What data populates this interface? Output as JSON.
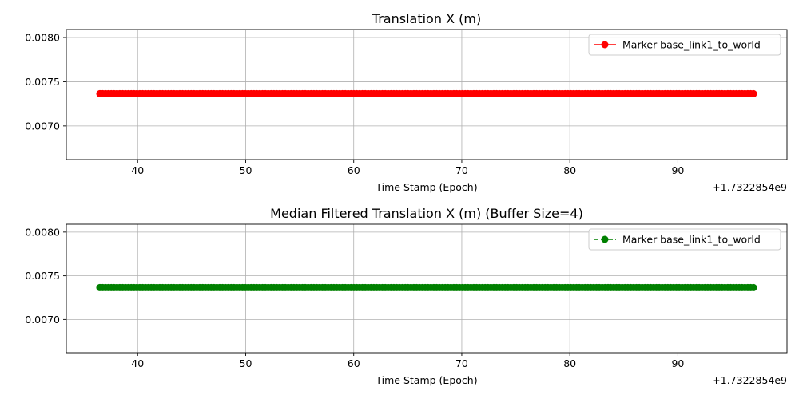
{
  "chart_data": [
    {
      "type": "scatter",
      "title": "Translation X (m)",
      "xlabel": "Time Stamp (Epoch)",
      "ylabel": "",
      "offset_label": "+1.7322854e9",
      "x_range": [
        36.5,
        97.0
      ],
      "xlim": [
        33.4,
        100.1
      ],
      "ylim": [
        0.00662,
        0.00809
      ],
      "x_ticks": [
        40,
        50,
        60,
        70,
        80,
        90
      ],
      "y_ticks": [
        0.007,
        0.0075,
        0.008
      ],
      "y_tick_labels": [
        "0.0070",
        "0.0075",
        "0.0080"
      ],
      "y_value": 0.007365,
      "point_count": 230,
      "grid": true,
      "legend_position": "upper right",
      "series": [
        {
          "name": "Marker base_link1_to_world",
          "color": "#ff0000",
          "line_style": "solid",
          "marker": "circle"
        }
      ]
    },
    {
      "type": "scatter",
      "title": "Median Filtered Translation X (m) (Buffer Size=4)",
      "xlabel": "Time Stamp (Epoch)",
      "ylabel": "",
      "offset_label": "+1.7322854e9",
      "x_range": [
        36.5,
        97.0
      ],
      "xlim": [
        33.4,
        100.1
      ],
      "ylim": [
        0.00662,
        0.00809
      ],
      "x_ticks": [
        40,
        50,
        60,
        70,
        80,
        90
      ],
      "y_ticks": [
        0.007,
        0.0075,
        0.008
      ],
      "y_tick_labels": [
        "0.0070",
        "0.0075",
        "0.0080"
      ],
      "y_value": 0.007365,
      "point_count": 230,
      "grid": true,
      "legend_position": "upper right",
      "series": [
        {
          "name": "Marker base_link1_to_world",
          "color": "#008000",
          "line_style": "dashed",
          "marker": "circle"
        }
      ]
    }
  ]
}
